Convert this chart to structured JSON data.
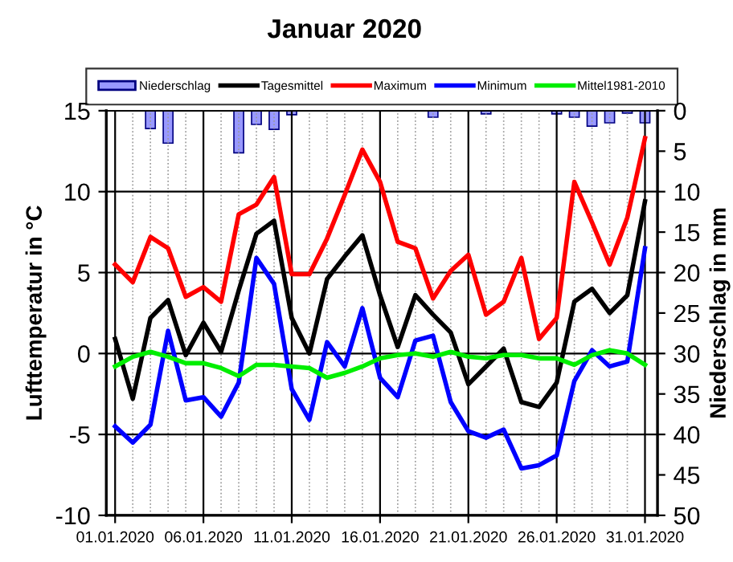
{
  "chart_data": {
    "type": "line",
    "title": "Januar 2020",
    "ylabel": "Lufttemperatur in °C",
    "y2label": "Niederschlag in mm",
    "x": [
      "2020-01-01",
      "2020-01-02",
      "2020-01-03",
      "2020-01-04",
      "2020-01-05",
      "2020-01-06",
      "2020-01-07",
      "2020-01-08",
      "2020-01-09",
      "2020-01-10",
      "2020-01-11",
      "2020-01-12",
      "2020-01-13",
      "2020-01-14",
      "2020-01-15",
      "2020-01-16",
      "2020-01-17",
      "2020-01-18",
      "2020-01-19",
      "2020-01-20",
      "2020-01-21",
      "2020-01-22",
      "2020-01-23",
      "2020-01-24",
      "2020-01-25",
      "2020-01-26",
      "2020-01-27",
      "2020-01-28",
      "2020-01-29",
      "2020-01-30",
      "2020-01-31"
    ],
    "xlim": [
      "2019-12-31T12:00",
      "2020-01-31T17:00"
    ],
    "xticks": [
      {
        "value": "2020-01-01",
        "label": "01.01.2020"
      },
      {
        "value": "2020-01-06",
        "label": "06.01.2020"
      },
      {
        "value": "2020-01-11",
        "label": "11.01.2020"
      },
      {
        "value": "2020-01-16",
        "label": "16.01.2020"
      },
      {
        "value": "2020-01-21",
        "label": "21.01.2020"
      },
      {
        "value": "2020-01-26",
        "label": "26.01.2020"
      },
      {
        "value": "2020-01-31",
        "label": "31.01.2020"
      }
    ],
    "ylim": [
      -10,
      15
    ],
    "yticks": [
      -10,
      -5,
      0,
      5,
      10,
      15
    ],
    "y2lim": [
      50,
      0
    ],
    "y2ticks": [
      0,
      5,
      10,
      15,
      20,
      25,
      30,
      35,
      40,
      45,
      50
    ],
    "grid": true,
    "legend": "top",
    "marker": "none",
    "line_style": "solid",
    "series": [
      {
        "name": "Niederschlag",
        "type": "bar",
        "axis": "y2",
        "color": "#9999ff",
        "values": [
          null,
          null,
          2.2,
          4.0,
          null,
          null,
          null,
          5.2,
          1.7,
          2.3,
          0.5,
          null,
          null,
          null,
          null,
          null,
          null,
          null,
          0.8,
          null,
          null,
          0.4,
          null,
          null,
          null,
          0.4,
          0.8,
          1.9,
          1.5,
          0.3,
          1.5
        ]
      },
      {
        "name": "Tagesmittel",
        "color": "#000000",
        "values": [
          0.9,
          -2.8,
          2.2,
          3.3,
          -0.1,
          1.9,
          0.1,
          3.9,
          7.4,
          8.2,
          2.2,
          0.0,
          4.6,
          6.0,
          7.3,
          3.6,
          0.4,
          3.6,
          2.4,
          1.3,
          -1.9,
          -0.8,
          0.3,
          -3.0,
          -3.3,
          -1.8,
          3.2,
          4.0,
          2.5,
          3.6,
          9.4
        ]
      },
      {
        "name": "Maximum",
        "color": "#ff0000",
        "values": [
          5.5,
          4.4,
          7.2,
          6.5,
          3.5,
          4.1,
          3.2,
          8.6,
          9.2,
          10.9,
          4.9,
          4.9,
          7.1,
          9.8,
          12.6,
          10.6,
          6.9,
          6.5,
          3.4,
          5.1,
          6.1,
          2.4,
          3.2,
          5.9,
          0.9,
          2.2,
          10.6,
          8.1,
          5.5,
          8.4,
          13.3
        ]
      },
      {
        "name": "Minimum",
        "color": "#0000ff",
        "values": [
          -4.5,
          -5.5,
          -4.4,
          1.4,
          -2.9,
          -2.7,
          -3.9,
          -1.8,
          5.9,
          4.3,
          -2.2,
          -4.1,
          0.7,
          -0.8,
          2.8,
          -1.5,
          -2.7,
          0.8,
          1.1,
          -3.0,
          -4.8,
          -5.2,
          -4.7,
          -7.1,
          -6.9,
          -6.3,
          -1.7,
          0.2,
          -0.8,
          -0.5,
          6.5
        ]
      },
      {
        "name": "Mittel1981-2010",
        "color": "#00ee00",
        "values": [
          -0.8,
          -0.2,
          0.1,
          -0.2,
          -0.6,
          -0.6,
          -0.9,
          -1.4,
          -0.7,
          -0.7,
          -0.8,
          -0.9,
          -1.5,
          -1.2,
          -0.8,
          -0.3,
          -0.1,
          0.0,
          -0.2,
          0.1,
          -0.2,
          -0.3,
          -0.1,
          -0.1,
          -0.3,
          -0.3,
          -0.7,
          -0.1,
          0.2,
          0.0,
          -0.7
        ]
      }
    ]
  }
}
